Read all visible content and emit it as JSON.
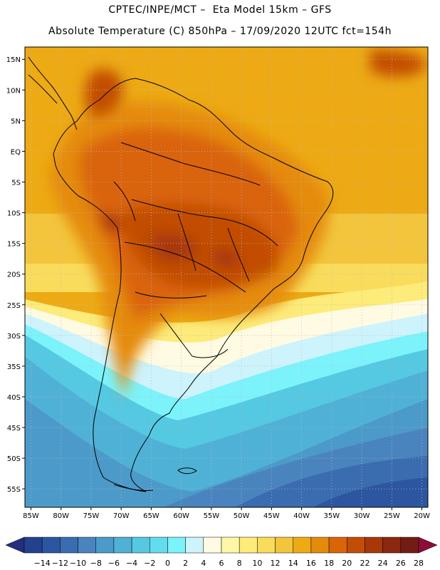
{
  "header": {
    "title_line1": "CPTEC/INPE/MCT –  Eta Model 15km – GFS",
    "title_line2": "Absolute Temperature (C) 850hPa – 17/09/2020 12UTC fct=154h"
  },
  "map": {
    "lon_labels": [
      "85W",
      "80W",
      "75W",
      "70W",
      "65W",
      "60W",
      "55W",
      "50W",
      "45W",
      "40W",
      "35W",
      "30W",
      "25W",
      "20W"
    ],
    "lat_labels": [
      "15N",
      "10N",
      "5N",
      "EQ",
      "5S",
      "10S",
      "15S",
      "20S",
      "25S",
      "30S",
      "35S",
      "40S",
      "45S",
      "50S",
      "55S"
    ],
    "lon_range": [
      -86,
      -19
    ],
    "lat_range": [
      17,
      -58
    ]
  },
  "colorbar": {
    "labels": [
      "-14",
      "-12",
      "-10",
      "-8",
      "-6",
      "-4",
      "-2",
      "0",
      "2",
      "4",
      "6",
      "8",
      "10",
      "12",
      "14",
      "16",
      "18",
      "20",
      "22",
      "24",
      "26",
      "28"
    ],
    "colors": [
      "#24418f",
      "#2c56a0",
      "#3a6cb0",
      "#4a84bf",
      "#4c9ac9",
      "#4fb1d6",
      "#55c8e2",
      "#63dcee",
      "#7cf2fb",
      "#cdf3fc",
      "#fffae2",
      "#fff7a6",
      "#fdeb7a",
      "#f9dc5b",
      "#f3c53c",
      "#edaa14",
      "#e58b0a",
      "#da6408",
      "#c24d06",
      "#a83808",
      "#8c2810",
      "#741c14"
    ],
    "under_color": "#232e80",
    "over_color": "#8c0c3c"
  }
}
